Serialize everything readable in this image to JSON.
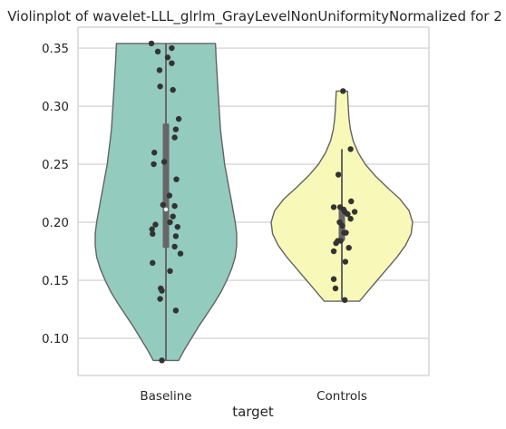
{
  "chart_data": {
    "type": "violin",
    "title": "Violinplot of wavelet-LLL_glrlm_GrayLevelNonUniformityNormalized for 2",
    "xlabel": "target",
    "ylabel": "",
    "categories": [
      "Baseline",
      "Controls"
    ],
    "ylim": [
      0.068,
      0.368
    ],
    "yticks": [
      0.1,
      0.15,
      0.2,
      0.25,
      0.3,
      0.35
    ],
    "ytick_labels": [
      "0.10",
      "0.15",
      "0.20",
      "0.25",
      "0.30",
      "0.35"
    ],
    "grid": "horizontal",
    "colors": {
      "Baseline": "#93cbbf",
      "Controls": "#f8f8b8",
      "outline": "#636363",
      "points": "#333333",
      "box": "#666666",
      "grid": "#cccccc"
    },
    "violins": [
      {
        "name": "Baseline",
        "range": [
          0.081,
          0.354
        ],
        "box": {
          "q1": 0.178,
          "median": 0.211,
          "q3": 0.285,
          "whisker_low": 0.081,
          "whisker_high": 0.354
        },
        "density": [
          [
            0.081,
            0.18
          ],
          [
            0.09,
            0.26
          ],
          [
            0.1,
            0.36
          ],
          [
            0.11,
            0.46
          ],
          [
            0.12,
            0.57
          ],
          [
            0.13,
            0.68
          ],
          [
            0.14,
            0.78
          ],
          [
            0.15,
            0.86
          ],
          [
            0.16,
            0.93
          ],
          [
            0.17,
            0.98
          ],
          [
            0.18,
            1.0
          ],
          [
            0.19,
            1.0
          ],
          [
            0.2,
            0.98
          ],
          [
            0.21,
            0.95
          ],
          [
            0.22,
            0.92
          ],
          [
            0.23,
            0.89
          ],
          [
            0.24,
            0.86
          ],
          [
            0.25,
            0.83
          ],
          [
            0.26,
            0.81
          ],
          [
            0.27,
            0.79
          ],
          [
            0.28,
            0.77
          ],
          [
            0.29,
            0.76
          ],
          [
            0.3,
            0.75
          ],
          [
            0.31,
            0.74
          ],
          [
            0.32,
            0.73
          ],
          [
            0.33,
            0.72
          ],
          [
            0.34,
            0.71
          ],
          [
            0.354,
            0.7
          ]
        ],
        "points": [
          [
            -0.25,
            0.354
          ],
          [
            0.1,
            0.35
          ],
          [
            -0.14,
            0.347
          ],
          [
            0.03,
            0.342
          ],
          [
            0.1,
            0.337
          ],
          [
            -0.11,
            0.331
          ],
          [
            -0.1,
            0.317
          ],
          [
            0.12,
            0.314
          ],
          [
            0.22,
            0.289
          ],
          [
            0.17,
            0.28
          ],
          [
            0.15,
            0.273
          ],
          [
            -0.2,
            0.26
          ],
          [
            -0.03,
            0.252
          ],
          [
            -0.21,
            0.25
          ],
          [
            0.18,
            0.237
          ],
          [
            0.06,
            0.223
          ],
          [
            -0.05,
            0.215
          ],
          [
            0.15,
            0.214
          ],
          [
            0.12,
            0.205
          ],
          [
            0.07,
            0.2
          ],
          [
            -0.18,
            0.198
          ],
          [
            0.2,
            0.196
          ],
          [
            -0.24,
            0.194
          ],
          [
            -0.23,
            0.19
          ],
          [
            0.17,
            0.188
          ],
          [
            0.15,
            0.179
          ],
          [
            0.25,
            0.173
          ],
          [
            -0.23,
            0.165
          ],
          [
            0.07,
            0.158
          ],
          [
            -0.09,
            0.143
          ],
          [
            -0.07,
            0.141
          ],
          [
            -0.1,
            0.134
          ],
          [
            0.17,
            0.124
          ],
          [
            -0.07,
            0.081
          ]
        ]
      },
      {
        "name": "Controls",
        "range": [
          0.132,
          0.313
        ],
        "box": {
          "q1": 0.184,
          "median": 0.197,
          "q3": 0.212,
          "whisker_low": 0.133,
          "whisker_high": 0.263
        },
        "density": [
          [
            0.132,
            0.25
          ],
          [
            0.14,
            0.36
          ],
          [
            0.15,
            0.5
          ],
          [
            0.16,
            0.64
          ],
          [
            0.17,
            0.78
          ],
          [
            0.18,
            0.9
          ],
          [
            0.19,
            0.98
          ],
          [
            0.2,
            1.0
          ],
          [
            0.21,
            0.95
          ],
          [
            0.22,
            0.82
          ],
          [
            0.23,
            0.64
          ],
          [
            0.24,
            0.47
          ],
          [
            0.25,
            0.33
          ],
          [
            0.26,
            0.23
          ],
          [
            0.27,
            0.16
          ],
          [
            0.28,
            0.12
          ],
          [
            0.29,
            0.1
          ],
          [
            0.3,
            0.09
          ],
          [
            0.313,
            0.08
          ]
        ],
        "points": [
          [
            0.02,
            0.313
          ],
          [
            0.15,
            0.263
          ],
          [
            -0.06,
            0.241
          ],
          [
            0.16,
            0.218
          ],
          [
            -0.14,
            0.213
          ],
          [
            -0.03,
            0.213
          ],
          [
            0.03,
            0.211
          ],
          [
            0.05,
            0.209
          ],
          [
            0.22,
            0.209
          ],
          [
            0.1,
            0.207
          ],
          [
            0.15,
            0.203
          ],
          [
            -0.04,
            0.2
          ],
          [
            0.01,
            0.197
          ],
          [
            0.04,
            0.191
          ],
          [
            0.07,
            0.191
          ],
          [
            -0.07,
            0.184
          ],
          [
            -0.02,
            0.184
          ],
          [
            -0.1,
            0.182
          ],
          [
            0.12,
            0.178
          ],
          [
            -0.14,
            0.175
          ],
          [
            0.06,
            0.166
          ],
          [
            -0.14,
            0.151
          ],
          [
            -0.11,
            0.143
          ],
          [
            0.05,
            0.133
          ]
        ]
      }
    ]
  }
}
